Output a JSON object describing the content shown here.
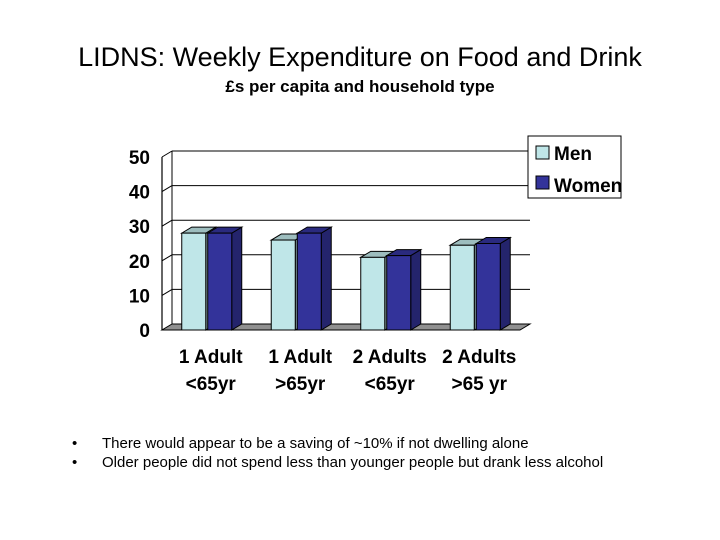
{
  "title": "LIDNS: Weekly Expenditure on Food and Drink",
  "subtitle": "£s per capita and household type",
  "colors": {
    "men": "#bfe6e8",
    "women": "#33339a"
  },
  "chart_data": {
    "type": "bar",
    "title": "",
    "xlabel": "",
    "ylabel": "",
    "ylim": [
      0,
      50
    ],
    "yticks": [
      0,
      10,
      20,
      30,
      40,
      50
    ],
    "grid": true,
    "legend": "top-right",
    "categories": [
      {
        "line1": "1 Adult",
        "line2": "<65yr"
      },
      {
        "line1": "1 Adult",
        "line2": ">65yr"
      },
      {
        "line1": "2 Adults",
        "line2": "<65yr"
      },
      {
        "line1": "2 Adults",
        "line2": ">65 yr"
      }
    ],
    "series": [
      {
        "name": "Men",
        "values": [
          28,
          26,
          21,
          24.5
        ]
      },
      {
        "name": "Women",
        "values": [
          28,
          28,
          21.5,
          25
        ]
      }
    ]
  },
  "bullets": [
    "There would appear to be a saving of ~10% if not dwelling alone",
    "Older people did not spend less than younger people but drank less alcohol"
  ]
}
